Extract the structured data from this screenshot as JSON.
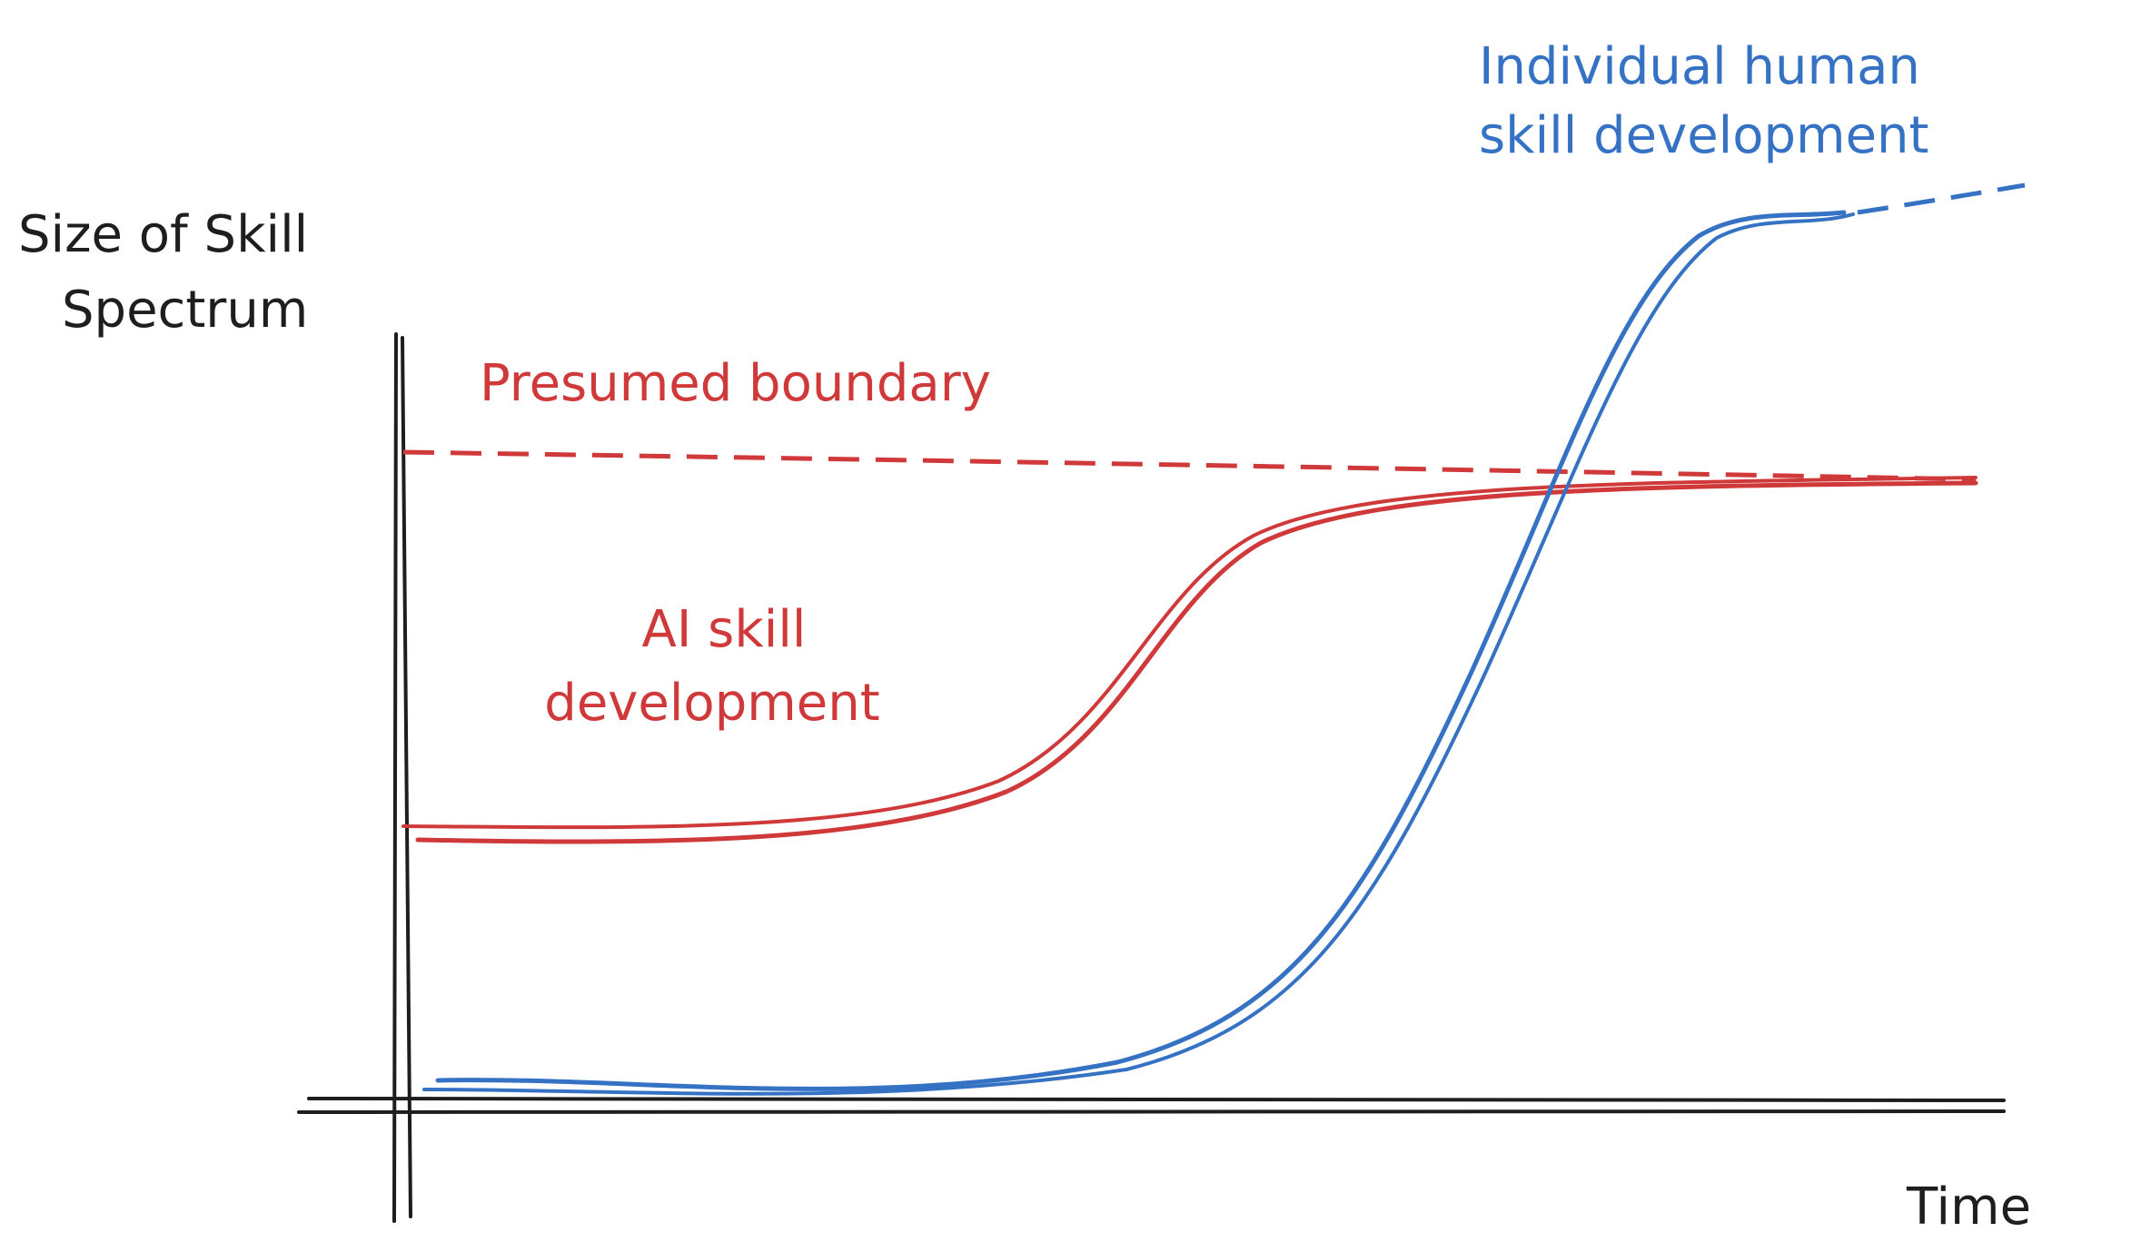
{
  "axes": {
    "y_label": [
      "Size of Skill",
      "Spectrum"
    ],
    "x_label": "Time"
  },
  "annotations": {
    "boundary": "Presumed boundary",
    "ai": [
      "AI skill",
      "development"
    ],
    "human": [
      "Individual human",
      "skill development"
    ]
  }
}
